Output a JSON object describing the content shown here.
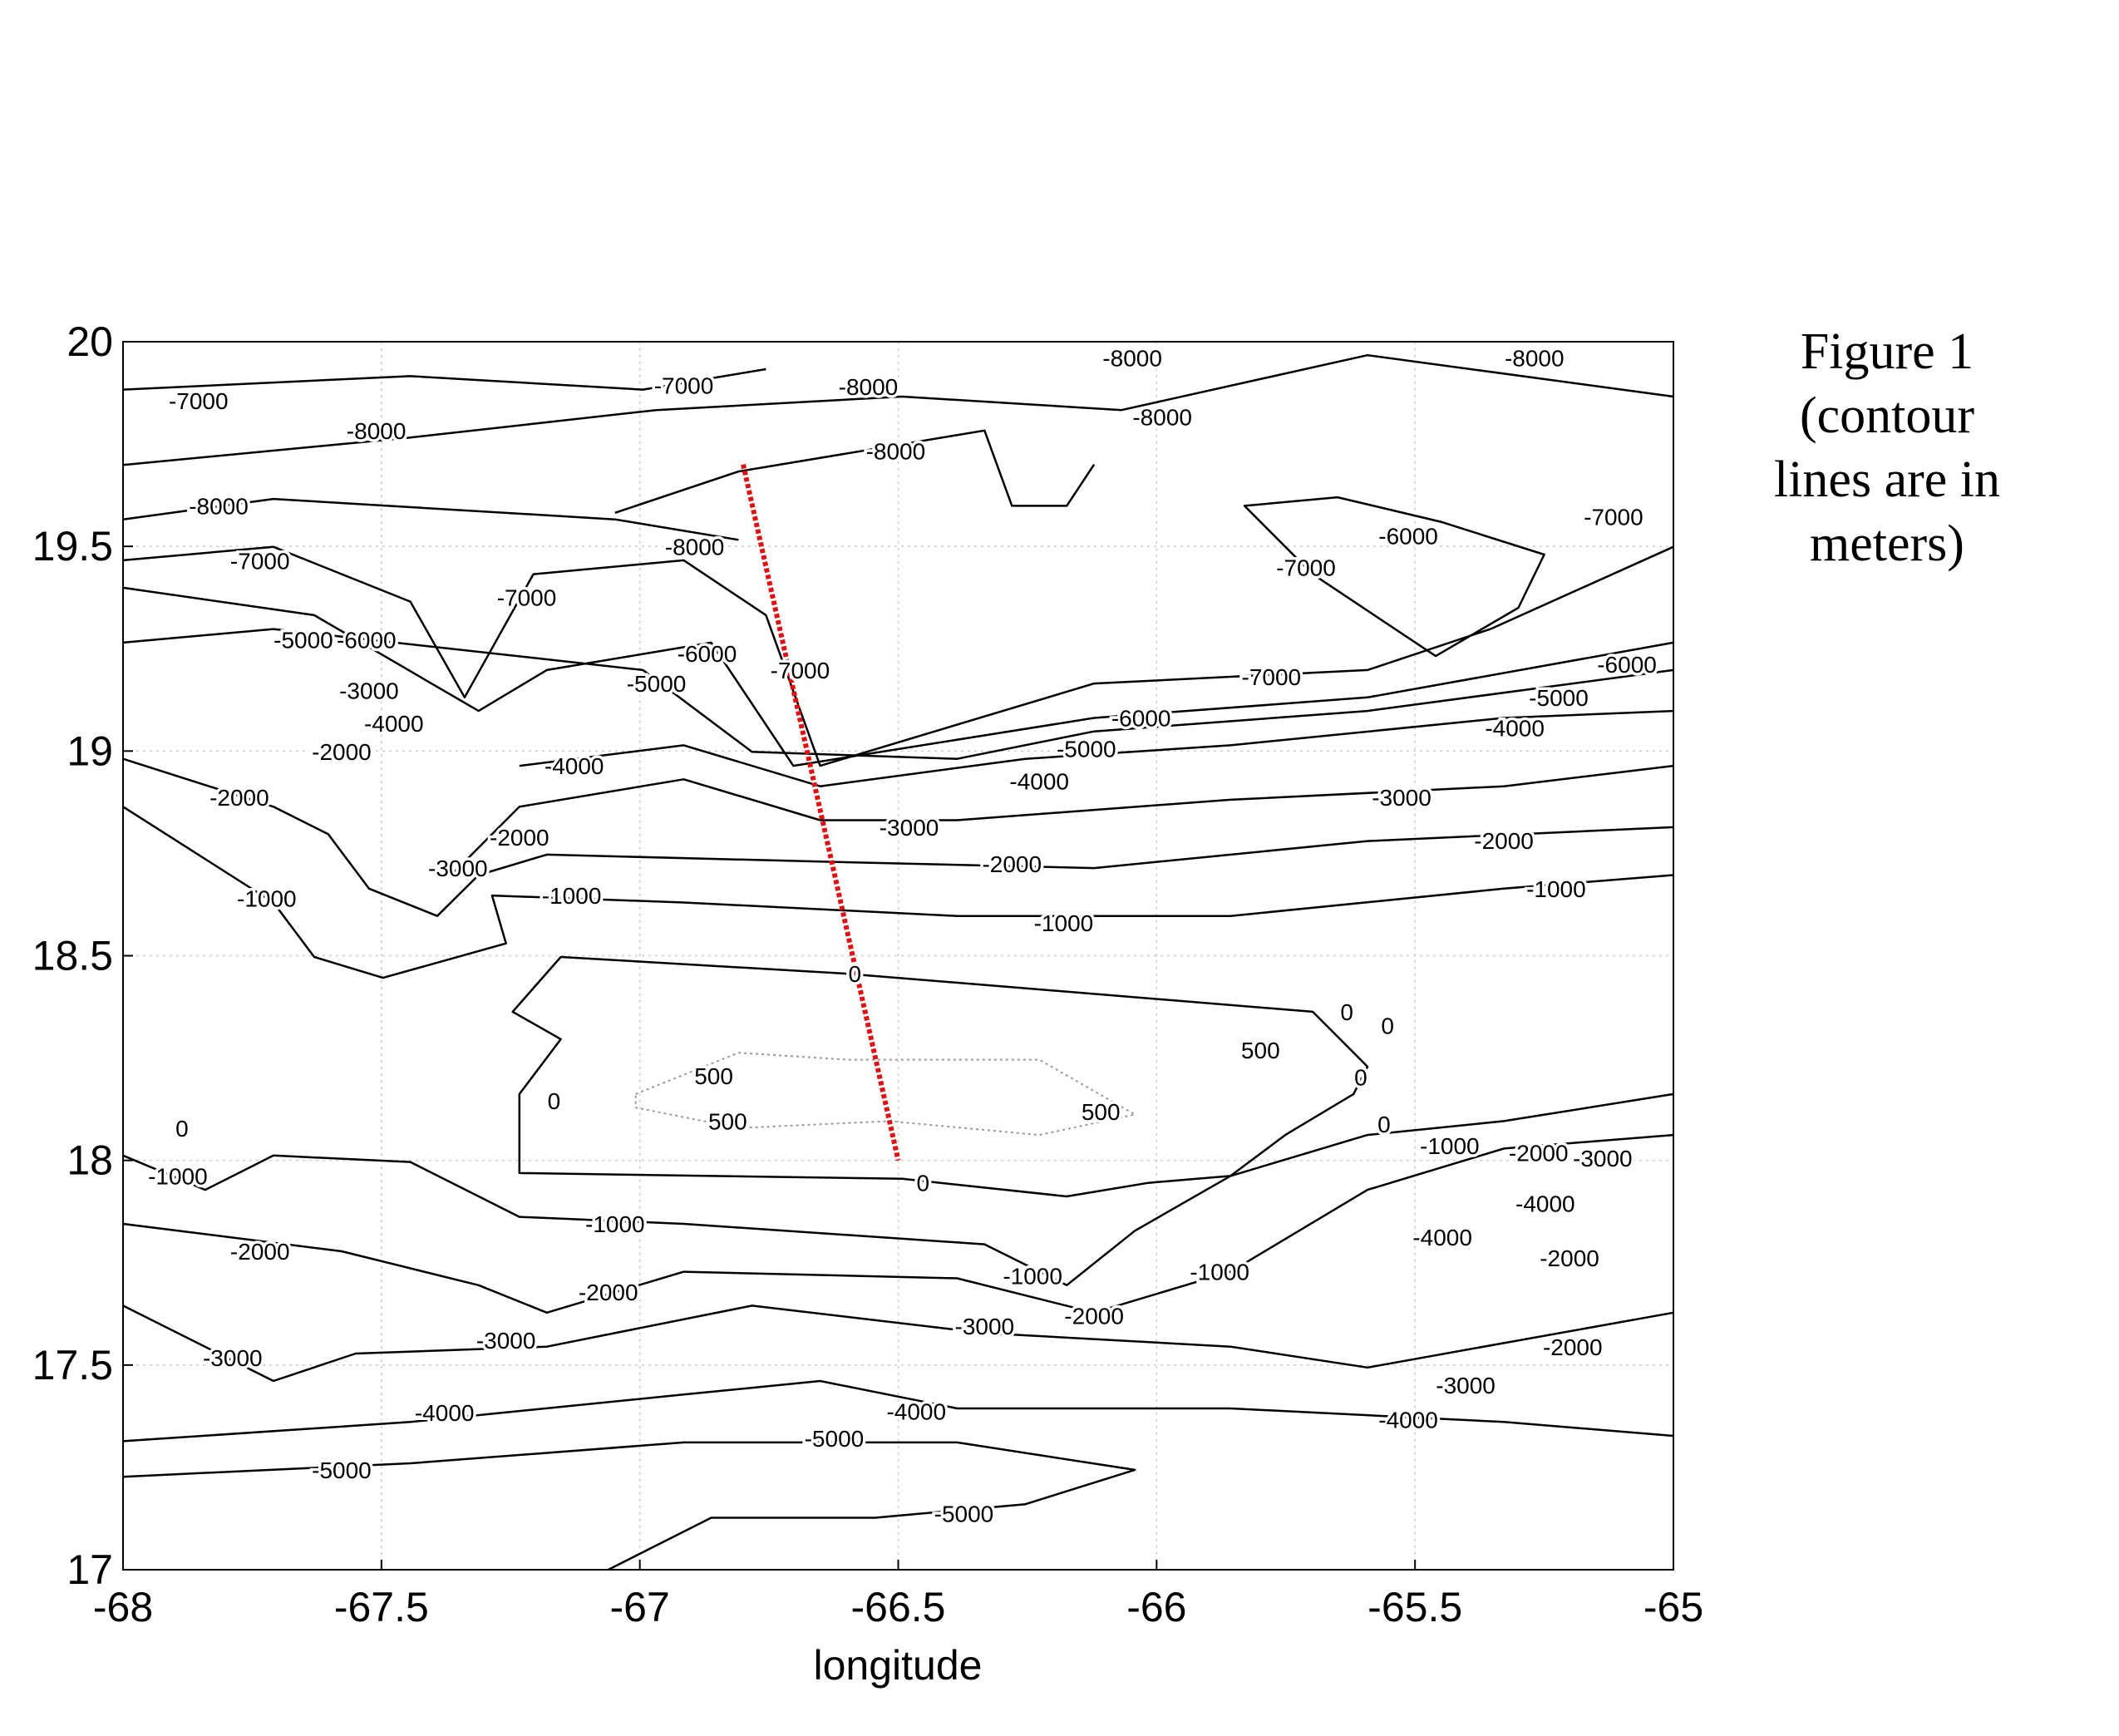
{
  "caption": {
    "lines": [
      "Figure 1",
      "(contour",
      "lines are in",
      "meters)"
    ]
  },
  "chart_data": {
    "type": "line",
    "subtype": "contour",
    "xlabel": "longitude",
    "ylabel": "",
    "xlim": [
      -68,
      -65
    ],
    "ylim": [
      17,
      20
    ],
    "xticks": [
      "-68",
      "-67.5",
      "-67",
      "-66.5",
      "-66",
      "-65.5",
      "-65"
    ],
    "yticks": [
      "17",
      "17.5",
      "18",
      "18.5",
      "19",
      "19.5",
      "20"
    ],
    "grid": true,
    "colors": {
      "contour": "#000000",
      "contour_500": "#999999",
      "transect": "#e01010",
      "grid": "#cccccc"
    },
    "transect": {
      "from": [
        -66.8,
        19.7
      ],
      "to": [
        -66.5,
        18.0
      ]
    },
    "contours": [
      {
        "level": 0,
        "closed": true,
        "points": [
          [
            -67.246,
            18.363
          ],
          [
            -67.153,
            18.497
          ],
          [
            -66.598,
            18.456
          ],
          [
            -65.698,
            18.363
          ],
          [
            -65.592,
            18.229
          ],
          [
            -65.619,
            18.162
          ],
          [
            -65.751,
            18.062
          ],
          [
            -65.857,
            17.962
          ],
          [
            -66.016,
            17.945
          ],
          [
            -66.174,
            17.912
          ],
          [
            -66.492,
            17.955
          ],
          [
            -67.233,
            17.969
          ],
          [
            -67.233,
            18.162
          ],
          [
            -67.153,
            18.296
          ]
        ]
      },
      {
        "level": 500,
        "closed": true,
        "points": [
          [
            -67.008,
            18.162
          ],
          [
            -66.809,
            18.263
          ],
          [
            -66.598,
            18.246
          ],
          [
            -66.227,
            18.246
          ],
          [
            -66.042,
            18.112
          ],
          [
            -66.227,
            18.062
          ],
          [
            -66.518,
            18.096
          ],
          [
            -66.809,
            18.079
          ],
          [
            -67.008,
            18.129
          ]
        ]
      },
      {
        "level": -1000,
        "points": [
          [
            -68,
            18.864
          ],
          [
            -67.709,
            18.63
          ],
          [
            -67.63,
            18.497
          ],
          [
            -67.497,
            18.446
          ],
          [
            -67.259,
            18.53
          ],
          [
            -67.286,
            18.647
          ],
          [
            -66.915,
            18.63
          ],
          [
            -66.386,
            18.597
          ],
          [
            -65.857,
            18.597
          ],
          [
            -65.328,
            18.664
          ],
          [
            -65,
            18.697
          ]
        ]
      },
      {
        "level": -2000,
        "points": [
          [
            -68,
            18.981
          ],
          [
            -67.709,
            18.864
          ],
          [
            -67.603,
            18.797
          ],
          [
            -67.524,
            18.664
          ],
          [
            -67.392,
            18.597
          ],
          [
            -67.312,
            18.697
          ],
          [
            -67.18,
            18.747
          ],
          [
            -66.651,
            18.73
          ],
          [
            -66.121,
            18.714
          ],
          [
            -65.592,
            18.78
          ],
          [
            -65,
            18.814
          ]
        ]
      },
      {
        "level": -3000,
        "points": [
          [
            -67.365,
            18.697
          ],
          [
            -67.233,
            18.864
          ],
          [
            -66.915,
            18.931
          ],
          [
            -66.651,
            18.831
          ],
          [
            -66.386,
            18.831
          ],
          [
            -65.857,
            18.881
          ],
          [
            -65.328,
            18.914
          ],
          [
            -65,
            18.964
          ]
        ]
      },
      {
        "level": -4000,
        "points": [
          [
            -67.233,
            18.964
          ],
          [
            -66.915,
            19.014
          ],
          [
            -66.651,
            18.914
          ],
          [
            -66.254,
            18.981
          ],
          [
            -65.857,
            19.014
          ],
          [
            -65.328,
            19.081
          ],
          [
            -65,
            19.098
          ]
        ]
      },
      {
        "level": -5000,
        "points": [
          [
            -68,
            19.265
          ],
          [
            -67.709,
            19.298
          ],
          [
            -66.994,
            19.198
          ],
          [
            -66.783,
            18.998
          ],
          [
            -66.386,
            18.981
          ],
          [
            -66.121,
            19.048
          ],
          [
            -65.592,
            19.098
          ],
          [
            -65,
            19.198
          ]
        ]
      },
      {
        "level": -6000,
        "points": [
          [
            -68,
            19.399
          ],
          [
            -67.63,
            19.332
          ],
          [
            -67.312,
            19.098
          ],
          [
            -67.18,
            19.198
          ],
          [
            -66.862,
            19.265
          ],
          [
            -66.703,
            18.964
          ],
          [
            -66.121,
            19.081
          ],
          [
            -65.592,
            19.131
          ],
          [
            -65,
            19.265
          ]
        ]
      },
      {
        "level": -7000,
        "points": [
          [
            -68,
            19.883
          ],
          [
            -67.444,
            19.916
          ],
          [
            -66.994,
            19.883
          ],
          [
            -66.756,
            19.933
          ]
        ]
      },
      {
        "level": -7000,
        "points": [
          [
            -68,
            19.466
          ],
          [
            -67.709,
            19.499
          ],
          [
            -67.444,
            19.365
          ],
          [
            -67.339,
            19.131
          ],
          [
            -67.206,
            19.432
          ],
          [
            -66.915,
            19.466
          ],
          [
            -66.756,
            19.332
          ],
          [
            -66.651,
            18.964
          ],
          [
            -66.121,
            19.165
          ],
          [
            -65.592,
            19.198
          ],
          [
            -65.354,
            19.298
          ],
          [
            -65,
            19.499
          ]
        ]
      },
      {
        "level": -7000,
        "closed": true,
        "points": [
          [
            -65.83,
            19.599
          ],
          [
            -65.698,
            19.432
          ],
          [
            -65.46,
            19.232
          ],
          [
            -65.3,
            19.35
          ],
          [
            -65.25,
            19.48
          ],
          [
            -65.45,
            19.56
          ],
          [
            -65.65,
            19.62
          ]
        ]
      },
      {
        "level": -8000,
        "points": [
          [
            -68,
            19.699
          ],
          [
            -67.444,
            19.766
          ],
          [
            -66.968,
            19.833
          ],
          [
            -66.492,
            19.866
          ],
          [
            -66.068,
            19.833
          ],
          [
            -65.592,
            19.967
          ],
          [
            -65,
            19.866
          ]
        ]
      },
      {
        "level": -8000,
        "points": [
          [
            -68,
            19.566
          ],
          [
            -67.709,
            19.616
          ],
          [
            -67.048,
            19.566
          ],
          [
            -66.809,
            19.516
          ]
        ]
      },
      {
        "level": -8000,
        "points": [
          [
            -67.048,
            19.582
          ],
          [
            -66.809,
            19.683
          ],
          [
            -66.333,
            19.783
          ],
          [
            -66.28,
            19.599
          ],
          [
            -66.174,
            19.599
          ],
          [
            -66.121,
            19.7
          ]
        ]
      },
      {
        "level": -1000,
        "points": [
          [
            -68,
            18.012
          ],
          [
            -67.841,
            17.928
          ],
          [
            -67.709,
            18.012
          ],
          [
            -67.444,
            17.996
          ],
          [
            -67.233,
            17.862
          ],
          [
            -66.915,
            17.845
          ],
          [
            -66.333,
            17.795
          ],
          [
            -66.174,
            17.695
          ],
          [
            -66.042,
            17.828
          ],
          [
            -65.857,
            17.962
          ],
          [
            -65.592,
            18.062
          ],
          [
            -65.328,
            18.096
          ],
          [
            -65,
            18.162
          ]
        ]
      },
      {
        "level": -2000,
        "points": [
          [
            -68,
            17.845
          ],
          [
            -67.577,
            17.778
          ],
          [
            -67.312,
            17.695
          ],
          [
            -67.18,
            17.628
          ],
          [
            -66.915,
            17.728
          ],
          [
            -66.386,
            17.712
          ],
          [
            -66.121,
            17.628
          ],
          [
            -65.857,
            17.728
          ],
          [
            -65.592,
            17.928
          ],
          [
            -65.328,
            18.029
          ],
          [
            -65,
            18.062
          ]
        ]
      },
      {
        "level": -3000,
        "points": [
          [
            -68,
            17.645
          ],
          [
            -67.709,
            17.461
          ],
          [
            -67.55,
            17.528
          ],
          [
            -67.18,
            17.545
          ],
          [
            -66.783,
            17.645
          ],
          [
            -66.333,
            17.578
          ],
          [
            -65.857,
            17.545
          ],
          [
            -65.592,
            17.494
          ],
          [
            -65,
            17.628
          ]
        ]
      },
      {
        "level": -4000,
        "points": [
          [
            -68,
            17.314
          ],
          [
            -67.444,
            17.361
          ],
          [
            -66.915,
            17.428
          ],
          [
            -66.651,
            17.461
          ],
          [
            -66.386,
            17.394
          ],
          [
            -65.857,
            17.394
          ],
          [
            -65.328,
            17.361
          ],
          [
            -65,
            17.327
          ]
        ]
      },
      {
        "level": -5000,
        "points": [
          [
            -68,
            17.227
          ],
          [
            -67.444,
            17.26
          ],
          [
            -66.915,
            17.311
          ],
          [
            -66.386,
            17.311
          ],
          [
            -66.042,
            17.244
          ],
          [
            -66.254,
            17.16
          ],
          [
            -66.545,
            17.127
          ],
          [
            -66.862,
            17.127
          ],
          [
            -67.061,
            17
          ]
        ]
      }
    ],
    "contour_labels": [
      [
        "-7000",
        -67.854,
        19.856
      ],
      [
        "-8000",
        -67.51,
        19.783
      ],
      [
        "-7000",
        -66.915,
        19.893
      ],
      [
        "-8000",
        -66.558,
        19.89
      ],
      [
        "-8000",
        -66.047,
        19.96
      ],
      [
        "-8000",
        -65.269,
        19.96
      ],
      [
        "-8000",
        -65.989,
        19.816
      ],
      [
        "-8000",
        -66.505,
        19.733
      ],
      [
        "-8000",
        -67.815,
        19.599
      ],
      [
        "-8000",
        -66.894,
        19.499
      ],
      [
        "-7000",
        -67.735,
        19.465
      ],
      [
        "-7000",
        -67.219,
        19.375
      ],
      [
        "-7000",
        -65.711,
        19.449
      ],
      [
        "-6000",
        -65.513,
        19.526
      ],
      [
        "-7000",
        -65.116,
        19.572
      ],
      [
        "-5000",
        -67.651,
        19.272
      ],
      [
        "-6000",
        -67.529,
        19.272
      ],
      [
        "-3000",
        -67.524,
        19.148
      ],
      [
        "-4000",
        -67.476,
        19.125
      ],
      [
        "-2000",
        -67.577,
        19.041
      ],
      [
        "-5000",
        -66.968,
        19.165
      ],
      [
        "-6000",
        -66.87,
        19.181
      ],
      [
        "-7000",
        -66.69,
        19.198
      ],
      [
        "-7000",
        -65.778,
        19.181
      ],
      [
        "-6000",
        -65.09,
        19.212
      ],
      [
        "-5000",
        -65.222,
        19.131
      ],
      [
        "-4000",
        -65.307,
        19.071
      ],
      [
        "-6000",
        -66.03,
        19.081
      ],
      [
        "-5000",
        -66.136,
        19.048
      ],
      [
        "-4000",
        -66.227,
        18.998
      ],
      [
        "-4000",
        -67.127,
        18.964
      ],
      [
        "-2000",
        -67.775,
        18.887
      ],
      [
        "-3000",
        -65.526,
        18.887
      ],
      [
        "-3000",
        -66.479,
        18.814
      ],
      [
        "-3000",
        -67.352,
        18.714
      ],
      [
        "-2000",
        -67.233,
        18.747
      ],
      [
        "-2000",
        -66.28,
        18.724
      ],
      [
        "-2000",
        -65.328,
        18.781
      ],
      [
        "-1000",
        -67.722,
        18.64
      ],
      [
        "-1000",
        -67.132,
        18.647
      ],
      [
        "-1000",
        -66.18,
        18.58
      ],
      [
        "-1000",
        -65.227,
        18.664
      ],
      [
        "0",
        -66.584,
        18.456
      ],
      [
        "0",
        -65.632,
        18.363
      ],
      [
        "0",
        -65.553,
        18.329
      ],
      [
        "500",
        -65.799,
        18.269
      ],
      [
        "500",
        -66.857,
        18.206
      ],
      [
        "500",
        -66.83,
        18.096
      ],
      [
        "500",
        -66.108,
        18.119
      ],
      [
        "0",
        -67.166,
        18.146
      ],
      [
        "0",
        -65.605,
        18.203
      ],
      [
        "0",
        -65.56,
        18.089
      ],
      [
        "0",
        -67.886,
        18.079
      ],
      [
        "0",
        -66.452,
        17.945
      ],
      [
        "-1000",
        -67.894,
        17.962
      ],
      [
        "-1000",
        -65.433,
        18.036
      ],
      [
        "-2000",
        -65.261,
        18.019
      ],
      [
        "-3000",
        -65.137,
        18.005
      ],
      [
        "-4000",
        -65.248,
        17.895
      ],
      [
        "-4000",
        -65.447,
        17.812
      ],
      [
        "-2000",
        -65.201,
        17.762
      ],
      [
        "-1000",
        -67.048,
        17.845
      ],
      [
        "-2000",
        -67.735,
        17.778
      ],
      [
        "-1000",
        -66.24,
        17.718
      ],
      [
        "-1000",
        -65.878,
        17.728
      ],
      [
        "-2000",
        -67.061,
        17.678
      ],
      [
        "-2000",
        -66.121,
        17.621
      ],
      [
        "-3000",
        -66.333,
        17.595
      ],
      [
        "-3000",
        -67.259,
        17.561
      ],
      [
        "-3000",
        -67.788,
        17.518
      ],
      [
        "-2000",
        -65.195,
        17.544
      ],
      [
        "-3000",
        -65.402,
        17.451
      ],
      [
        "-4000",
        -67.378,
        17.384
      ],
      [
        "-4000",
        -66.465,
        17.387
      ],
      [
        "-4000",
        -65.513,
        17.367
      ],
      [
        "-5000",
        -66.624,
        17.321
      ],
      [
        "-5000",
        -67.577,
        17.244
      ],
      [
        "-5000",
        -66.373,
        17.137
      ]
    ]
  }
}
